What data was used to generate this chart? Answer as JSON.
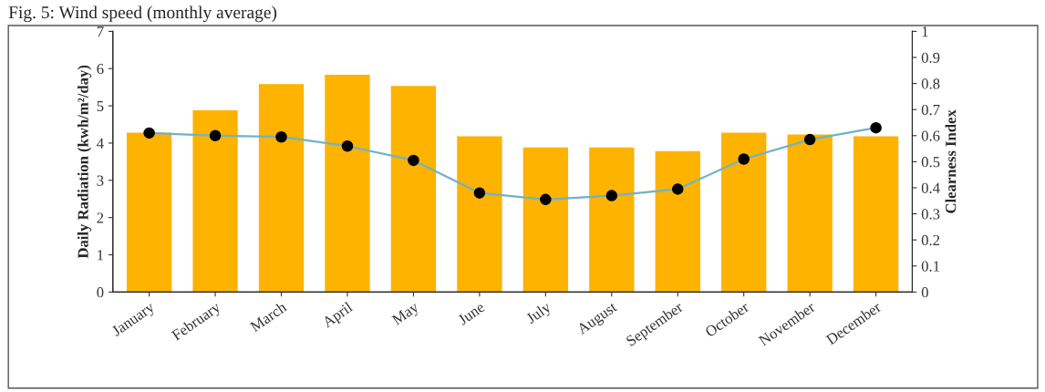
{
  "chart_data": {
    "type": "bar",
    "title": "Fig. 5: Wind speed (monthly average)",
    "ylabel": "Daily Radiation (kwh/m²/day)",
    "y2label": "Clearness Index",
    "categories": [
      "January",
      "February",
      "March",
      "April",
      "May",
      "June",
      "July",
      "August",
      "September",
      "October",
      "November",
      "December"
    ],
    "series": [
      {
        "color": "#fdb300",
        "values": [
          4.3,
          4.9,
          5.6,
          5.85,
          5.55,
          4.2,
          3.9,
          3.9,
          3.8,
          4.3,
          4.25,
          4.2
        ]
      },
      {
        "type": "line",
        "axis": "y2",
        "color": "#6fb3c8",
        "marker": "circle",
        "values": [
          0.61,
          0.6,
          0.595,
          0.56,
          0.505,
          0.38,
          0.355,
          0.37,
          0.395,
          0.51,
          0.585,
          0.63
        ]
      }
    ],
    "ylim": [
      0,
      7
    ],
    "yticks": [
      0,
      1,
      2,
      3,
      4,
      5,
      6,
      7
    ],
    "y2lim": [
      0,
      1
    ],
    "y2ticks": [
      0,
      0.1,
      0.2,
      0.3,
      0.4,
      0.5,
      0.6,
      0.7,
      0.8,
      0.9,
      1
    ],
    "grid": false,
    "legend": false
  }
}
